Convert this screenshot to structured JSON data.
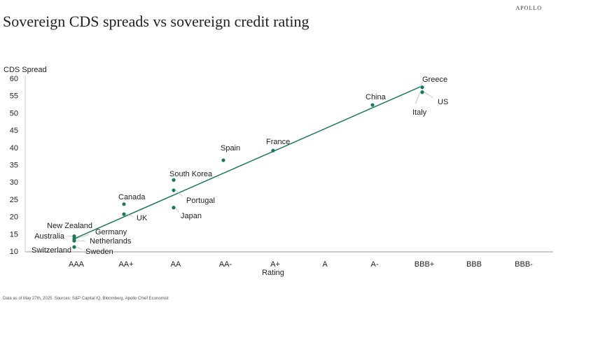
{
  "brand": "APOLLO",
  "title": "Sovereign CDS spreads vs sovereign credit rating",
  "source": "Data as of May 27th, 2025. Sources: S&P Capital IQ, Bloomberg, Apollo Chief Economist",
  "chart_data": {
    "type": "scatter",
    "xlabel": "Rating",
    "ylabel": "CDS Spread",
    "categories": [
      "AAA",
      "AA+",
      "AA",
      "AA-",
      "A+",
      "A",
      "A-",
      "BBB+",
      "BBB",
      "BBB-"
    ],
    "ylim": [
      10,
      60
    ],
    "yticks": [
      10,
      15,
      20,
      25,
      30,
      35,
      40,
      45,
      50,
      55,
      60
    ],
    "grid": false,
    "color": "#1b7a5e",
    "points": [
      {
        "name": "Switzerland",
        "x": "AAA",
        "y": 11.2
      },
      {
        "name": "Sweden",
        "x": "AAA",
        "y": 11.2
      },
      {
        "name": "Netherlands",
        "x": "AAA",
        "y": 13.0
      },
      {
        "name": "Germany",
        "x": "AAA",
        "y": 13.6
      },
      {
        "name": "Australia",
        "x": "AAA",
        "y": 14.3
      },
      {
        "name": "New Zealand",
        "x": "AAA",
        "y": 14.3
      },
      {
        "name": "Canada",
        "x": "AA+",
        "y": 23.6
      },
      {
        "name": "UK",
        "x": "AA+",
        "y": 20.7
      },
      {
        "name": "South Korea",
        "x": "AA",
        "y": 30.6
      },
      {
        "name": "Portugal",
        "x": "AA",
        "y": 27.6
      },
      {
        "name": "Japan",
        "x": "AA",
        "y": 22.6
      },
      {
        "name": "Spain",
        "x": "AA-",
        "y": 36.3
      },
      {
        "name": "France",
        "x": "A+",
        "y": 39.1
      },
      {
        "name": "China",
        "x": "A-",
        "y": 52.3
      },
      {
        "name": "Greece",
        "x": "BBB+",
        "y": 57.4
      },
      {
        "name": "US",
        "x": "BBB+",
        "y": 56.0
      },
      {
        "name": "Italy",
        "x": "BBB+",
        "y": 56.0
      }
    ],
    "trendline": {
      "from": {
        "x": "AAA",
        "y": 13.6
      },
      "to": {
        "x": "BBB+",
        "y": 57.8
      }
    }
  }
}
